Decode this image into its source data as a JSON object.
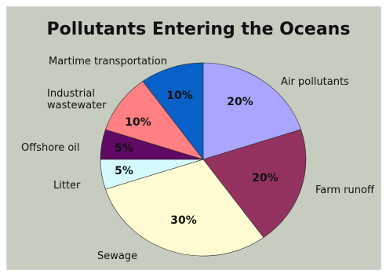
{
  "chart_data": {
    "type": "pie",
    "title": "Pollutants Entering the Oceans",
    "slices": [
      {
        "name": "Air pollutants",
        "value": 20,
        "label": "20%",
        "color": "#aaa6ff"
      },
      {
        "name": "Farm runoff",
        "value": 20,
        "label": "20%",
        "color": "#93325e"
      },
      {
        "name": "Sewage",
        "value": 30,
        "label": "30%",
        "color": "#fffbd2"
      },
      {
        "name": "Litter",
        "value": 5,
        "label": "5%",
        "color": "#d5fbff"
      },
      {
        "name": "Offshore oil",
        "value": 5,
        "label": "5%",
        "color": "#600a64"
      },
      {
        "name": "Industrial\nwastewater",
        "value": 10,
        "label": "10%",
        "color": "#ff8082"
      },
      {
        "name": "Martime transportation",
        "value": 10,
        "label": "10%",
        "color": "#0861c8"
      }
    ]
  }
}
